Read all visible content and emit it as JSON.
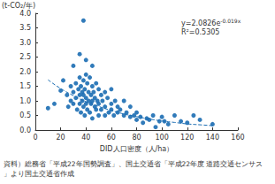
{
  "chart_data": {
    "type": "scatter",
    "y_label": "(t-CO₂/年)",
    "x_label": "DID人口密度（人/ha）",
    "source": "資料）総務省「平成22年国勢調査」、国土交通省「平成22年度 道路交通センサス」より国土交通省作成",
    "annotations": [
      {
        "text": "y=2.0826e",
        "sup": "-0.019x"
      },
      {
        "text": "R²=0.5305"
      }
    ],
    "xlim": [
      0,
      160
    ],
    "xticks": [
      0,
      20,
      40,
      60,
      80,
      100,
      120,
      140,
      160
    ],
    "ylim": [
      0,
      4
    ],
    "yticks": [
      {
        "value": 0,
        "label": "0.0"
      },
      0.5,
      {
        "value": 1,
        "label": "1.0"
      },
      1.5,
      {
        "value": 2,
        "label": "2.0"
      },
      2.5,
      {
        "value": 3,
        "label": "3.0"
      },
      3.5,
      {
        "value": 4,
        "label": "4.0"
      }
    ],
    "grid": false,
    "series": [
      {
        "type": "scatter",
        "color": "#1b6db3",
        "marker": "circle",
        "x": [
          10,
          15,
          20,
          22,
          25,
          26,
          28,
          28,
          30,
          30,
          30,
          32,
          32,
          33,
          34,
          35,
          35,
          35,
          35,
          36,
          36,
          37,
          37,
          38,
          38,
          38,
          38,
          39,
          39,
          40,
          40,
          40,
          40,
          41,
          41,
          42,
          42,
          43,
          43,
          44,
          44,
          45,
          45,
          45,
          45,
          46,
          47,
          47,
          48,
          48,
          49,
          50,
          50,
          50,
          52,
          52,
          53,
          55,
          55,
          55,
          57,
          58,
          60,
          60,
          60,
          62,
          63,
          65,
          65,
          67,
          70,
          70,
          72,
          75,
          75,
          78,
          80,
          80,
          83,
          85,
          88,
          90,
          93,
          95,
          98,
          100,
          102,
          105,
          110,
          115,
          120,
          125,
          130,
          140
        ],
        "values": [
          0.75,
          0.9,
          1.35,
          1.7,
          1.2,
          0.8,
          1.5,
          1.0,
          2.2,
          1.3,
          0.9,
          1.6,
          1.1,
          0.7,
          1.4,
          2.6,
          1.8,
          1.2,
          0.9,
          1.5,
          0.6,
          1.3,
          1.0,
          3.75,
          1.7,
          1.2,
          0.8,
          1.4,
          0.5,
          2.4,
          1.9,
          1.1,
          0.9,
          1.6,
          0.7,
          1.3,
          1.0,
          1.8,
          0.6,
          1.2,
          0.9,
          2.2,
          1.5,
          1.0,
          0.4,
          1.3,
          0.8,
          1.1,
          1.6,
          0.7,
          1.0,
          1.4,
          0.9,
          0.5,
          1.2,
          0.7,
          1.0,
          1.3,
          0.8,
          0.5,
          1.1,
          0.6,
          1.4,
          0.9,
          0.7,
          0.5,
          1.0,
          0.8,
          0.6,
          0.7,
          1.0,
          0.5,
          0.6,
          0.8,
          0.45,
          0.5,
          0.6,
          0.35,
          0.45,
          0.25,
          0.4,
          0.35,
          0.5,
          0.1,
          0.3,
          0.45,
          0.3,
          0.2,
          0.5,
          0.3,
          0.25,
          0.5,
          0.35,
          0.2
        ]
      },
      {
        "type": "line",
        "color": "#1b6db3",
        "line_style": "dashed",
        "x": [
          10,
          20,
          30,
          40,
          50,
          60,
          70,
          80,
          90,
          100,
          110,
          120,
          130,
          140
        ],
        "values": [
          1.72,
          1.42,
          1.18,
          0.97,
          0.81,
          0.67,
          0.55,
          0.46,
          0.38,
          0.31,
          0.26,
          0.21,
          0.18,
          0.15
        ]
      }
    ]
  }
}
